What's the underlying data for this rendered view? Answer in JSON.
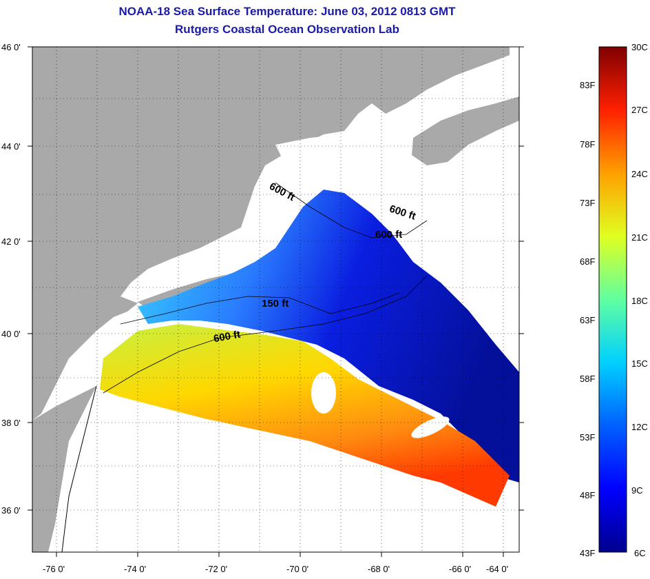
{
  "header": {
    "title": "NOAA-18 Sea Surface Temperature:  June 03, 2012 0813 GMT",
    "subtitle": "Rutgers Coastal Ocean Observation Lab"
  },
  "map": {
    "lat_labels": [
      "46 0'",
      "44 0'",
      "42 0'",
      "40 0'",
      "38 0'",
      "36 0'"
    ],
    "lon_labels": [
      "-76 0'",
      "-74 0'",
      "-72 0'",
      "-70 0'",
      "-68 0'",
      "-66 0'",
      "-64 0'"
    ],
    "contour_labels": [
      "600 ft",
      "600 ft",
      "600 ft",
      "150 ft",
      "600 ft"
    ],
    "colors": {
      "land": "#a9a9a9",
      "nodata": "#ffffff",
      "frame": "#000000"
    }
  },
  "colorbar": {
    "celsius": [
      "30C",
      "27C",
      "24C",
      "21C",
      "18C",
      "15C",
      "12C",
      "9C",
      "6C"
    ],
    "fahrenheit": [
      "83F",
      "78F",
      "73F",
      "68F",
      "63F",
      "58F",
      "53F",
      "48F",
      "43F"
    ],
    "colormap": [
      "#00008f",
      "#0000ff",
      "#0080ff",
      "#00ffff",
      "#80ff80",
      "#ffff00",
      "#ff8000",
      "#ff0000",
      "#800000"
    ]
  }
}
